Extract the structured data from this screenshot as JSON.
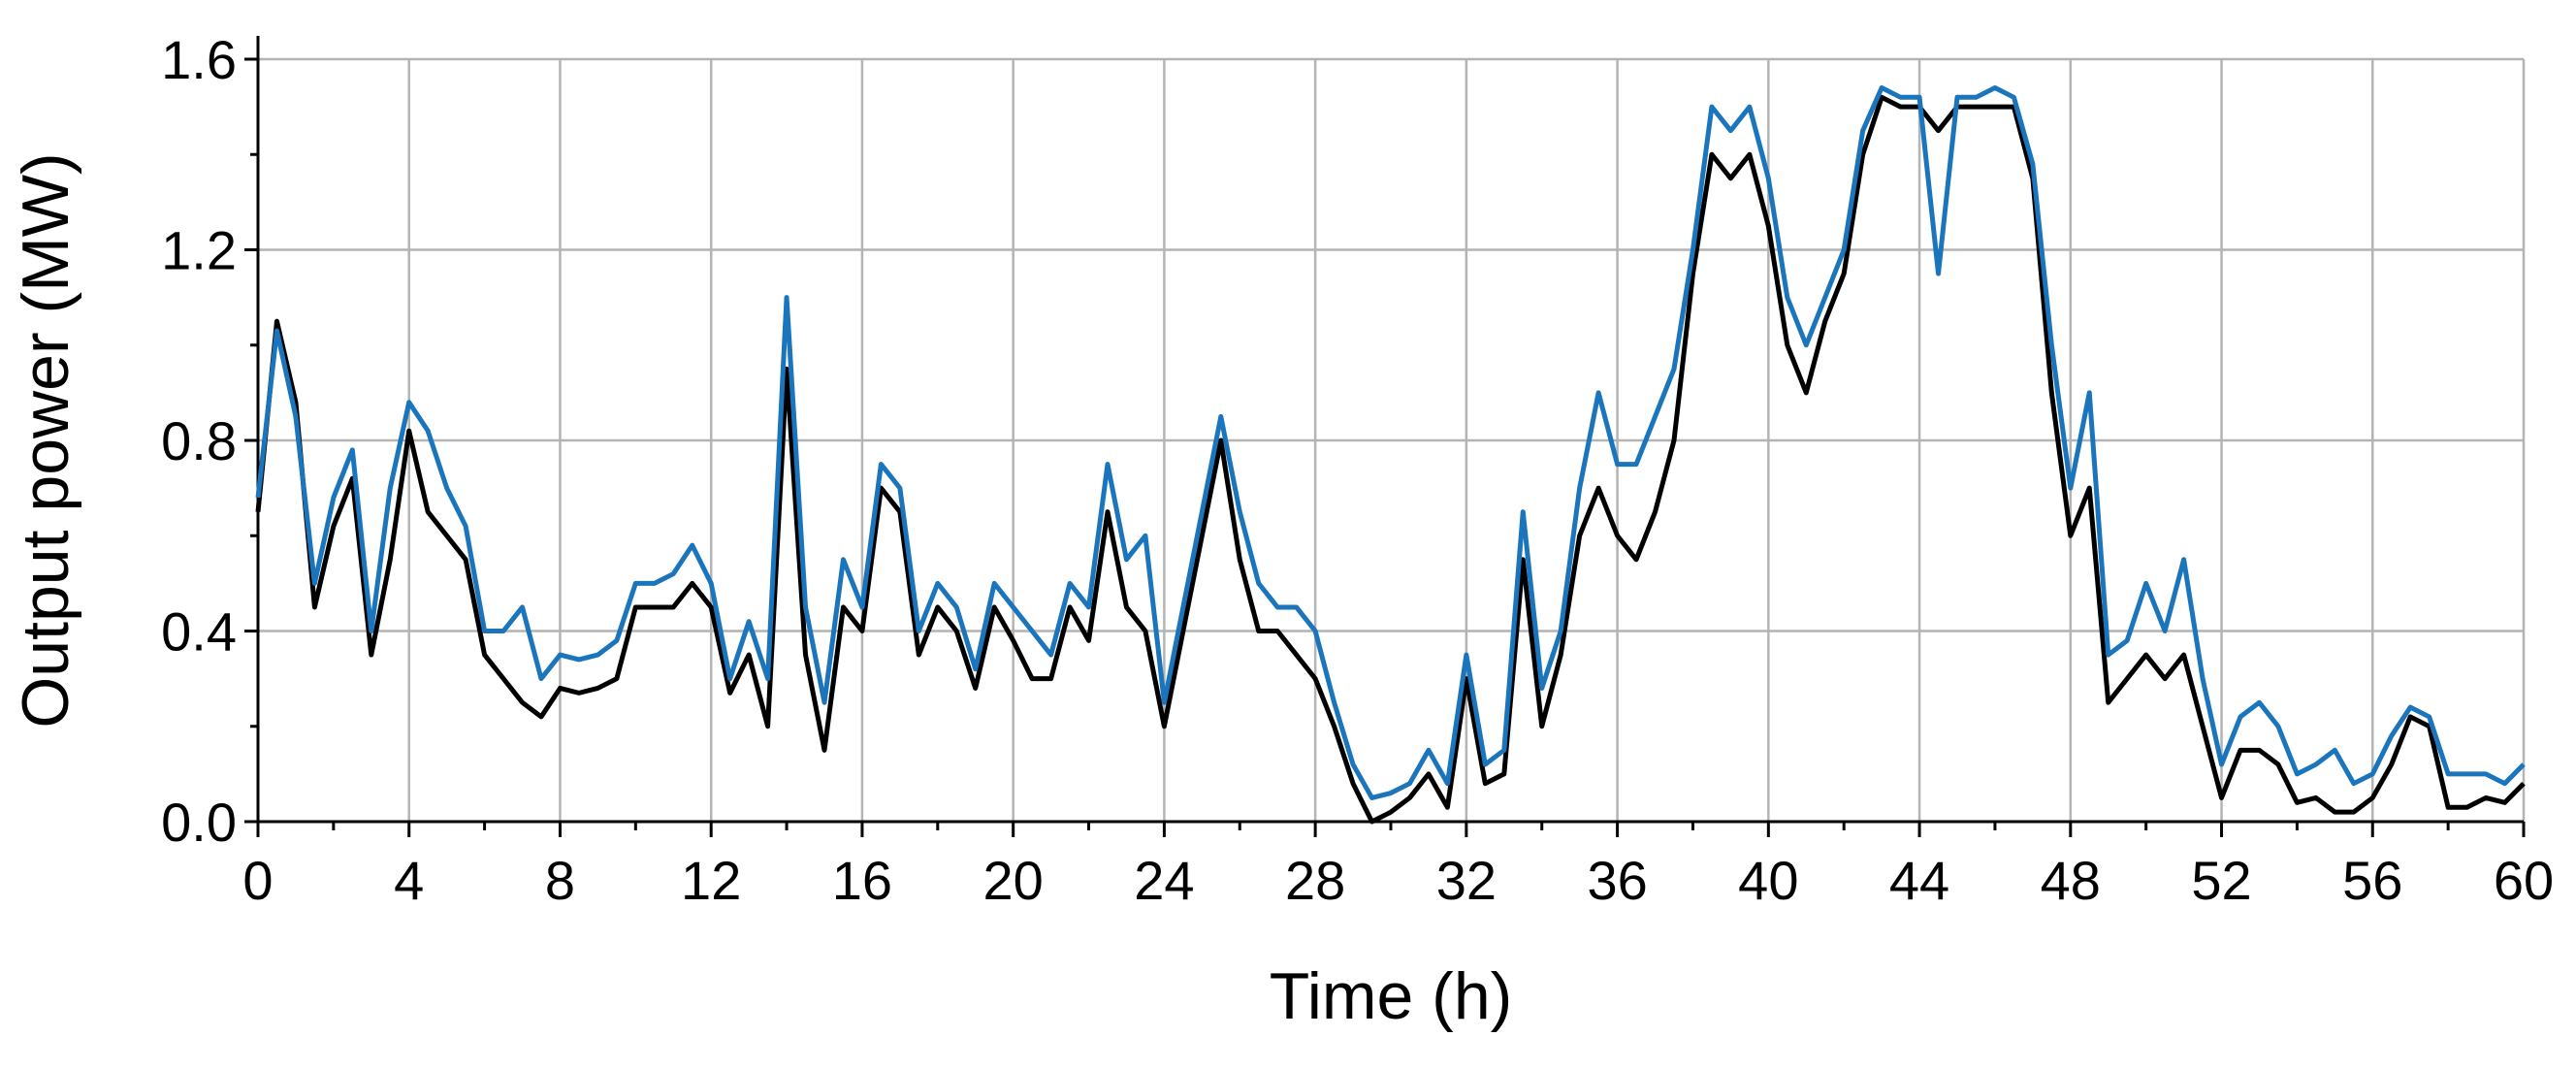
{
  "chart_data": {
    "type": "line",
    "x_label": "Time (h)",
    "y_label": "Output power (MW)",
    "x": [
      0,
      0.5,
      1,
      1.5,
      2,
      2.5,
      3,
      3.5,
      4,
      4.5,
      5,
      5.5,
      6,
      6.5,
      7,
      7.5,
      8,
      8.5,
      9,
      9.5,
      10,
      10.5,
      11,
      11.5,
      12,
      12.5,
      13,
      13.5,
      14,
      14.5,
      15,
      15.5,
      16,
      16.5,
      17,
      17.5,
      18,
      18.5,
      19,
      19.5,
      20,
      20.5,
      21,
      21.5,
      22,
      22.5,
      23,
      23.5,
      24,
      24.5,
      25,
      25.5,
      26,
      26.5,
      27,
      27.5,
      28,
      28.5,
      29,
      29.5,
      30,
      30.5,
      31,
      31.5,
      32,
      32.5,
      33,
      33.5,
      34,
      34.5,
      35,
      35.5,
      36,
      36.5,
      37,
      37.5,
      38,
      38.5,
      39,
      39.5,
      40,
      40.5,
      41,
      41.5,
      42,
      42.5,
      43,
      43.5,
      44,
      44.5,
      45,
      45.5,
      46,
      46.5,
      47,
      47.5,
      48,
      48.5,
      49,
      49.5,
      50,
      50.5,
      51,
      51.5,
      52,
      52.5,
      53,
      53.5,
      54,
      54.5,
      55,
      55.5,
      56,
      56.5,
      57,
      57.5,
      58,
      58.5,
      59,
      59.5,
      60
    ],
    "series": [
      {
        "color": "#000000",
        "values": [
          0.65,
          1.05,
          0.88,
          0.45,
          0.62,
          0.72,
          0.35,
          0.55,
          0.82,
          0.65,
          0.6,
          0.55,
          0.35,
          0.3,
          0.25,
          0.22,
          0.28,
          0.27,
          0.28,
          0.3,
          0.45,
          0.45,
          0.45,
          0.5,
          0.45,
          0.27,
          0.35,
          0.2,
          0.95,
          0.35,
          0.15,
          0.45,
          0.4,
          0.7,
          0.65,
          0.35,
          0.45,
          0.4,
          0.28,
          0.45,
          0.38,
          0.3,
          0.3,
          0.45,
          0.38,
          0.65,
          0.45,
          0.4,
          0.2,
          0.4,
          0.6,
          0.8,
          0.55,
          0.4,
          0.4,
          0.35,
          0.3,
          0.2,
          0.08,
          0,
          0.02,
          0.05,
          0.1,
          0.03,
          0.3,
          0.08,
          0.1,
          0.55,
          0.2,
          0.35,
          0.6,
          0.7,
          0.6,
          0.55,
          0.65,
          0.8,
          1.15,
          1.4,
          1.35,
          1.4,
          1.25,
          1.0,
          0.9,
          1.05,
          1.15,
          1.4,
          1.52,
          1.5,
          1.5,
          1.45,
          1.5,
          1.5,
          1.5,
          1.5,
          1.35,
          0.9,
          0.6,
          0.7,
          0.25,
          0.3,
          0.35,
          0.3,
          0.35,
          0.2,
          0.05,
          0.15,
          0.15,
          0.12,
          0.04,
          0.05,
          0.02,
          0.02,
          0.05,
          0.12,
          0.22,
          0.2,
          0.03,
          0.03,
          0.05,
          0.04,
          0.08
        ]
      },
      {
        "color": "#1b75bc",
        "values": [
          0.68,
          1.03,
          0.85,
          0.5,
          0.68,
          0.78,
          0.4,
          0.7,
          0.88,
          0.82,
          0.7,
          0.62,
          0.4,
          0.4,
          0.45,
          0.3,
          0.35,
          0.34,
          0.35,
          0.38,
          0.5,
          0.5,
          0.52,
          0.58,
          0.5,
          0.3,
          0.42,
          0.3,
          1.1,
          0.45,
          0.25,
          0.55,
          0.45,
          0.75,
          0.7,
          0.4,
          0.5,
          0.45,
          0.32,
          0.5,
          0.45,
          0.4,
          0.35,
          0.5,
          0.45,
          0.75,
          0.55,
          0.6,
          0.25,
          0.45,
          0.65,
          0.85,
          0.65,
          0.5,
          0.45,
          0.45,
          0.4,
          0.25,
          0.12,
          0.05,
          0.06,
          0.08,
          0.15,
          0.08,
          0.35,
          0.12,
          0.15,
          0.65,
          0.28,
          0.4,
          0.7,
          0.9,
          0.75,
          0.75,
          0.85,
          0.95,
          1.2,
          1.5,
          1.45,
          1.5,
          1.35,
          1.1,
          1.0,
          1.1,
          1.2,
          1.45,
          1.54,
          1.52,
          1.52,
          1.15,
          1.52,
          1.52,
          1.54,
          1.52,
          1.38,
          1.0,
          0.7,
          0.9,
          0.35,
          0.38,
          0.5,
          0.4,
          0.55,
          0.3,
          0.12,
          0.22,
          0.25,
          0.2,
          0.1,
          0.12,
          0.15,
          0.08,
          0.1,
          0.18,
          0.24,
          0.22,
          0.1,
          0.1,
          0.1,
          0.08,
          0.12
        ]
      }
    ],
    "xlim": [
      0,
      60
    ],
    "xticks": [
      0,
      4,
      8,
      12,
      16,
      20,
      24,
      28,
      32,
      36,
      40,
      44,
      48,
      52,
      56,
      60
    ],
    "ylim": [
      0,
      1.6
    ],
    "yticks": [
      {
        "value": 0,
        "label": "0.0"
      },
      0.4,
      0.8,
      1.2,
      1.6
    ],
    "grid": true
  }
}
